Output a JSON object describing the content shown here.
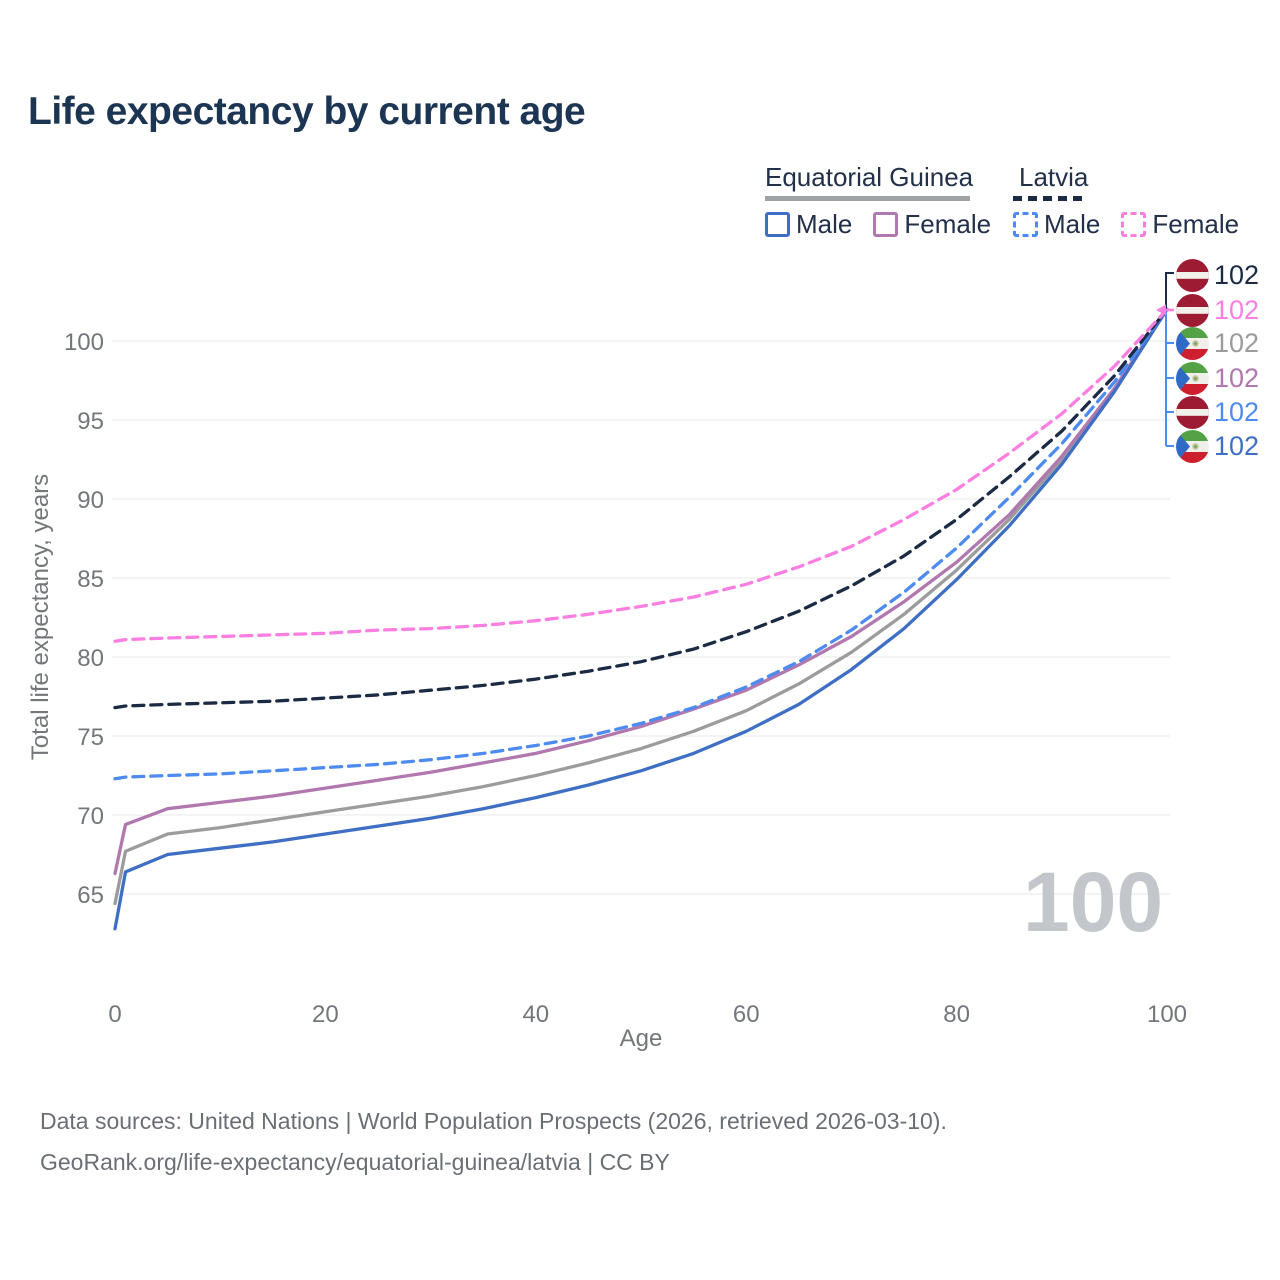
{
  "title": "Life expectancy by current age",
  "watermark": "100",
  "footer": {
    "line1": "Data sources: United Nations | World Population Prospects (2026, retrieved 2026-03-10).",
    "line2": "GeoRank.org/life-expectancy/equatorial-guinea/latvia | CC BY"
  },
  "legend": {
    "groups": [
      {
        "country": "Equatorial Guinea",
        "line_style": "solid",
        "underline_color": "#9FA3A7",
        "items": [
          {
            "label": "Male",
            "color": "#3F6FC4",
            "style": "solid"
          },
          {
            "label": "Female",
            "color": "#B078AE",
            "style": "solid"
          }
        ]
      },
      {
        "country": "Latvia",
        "line_style": "dashed",
        "underline_color": "#1B2B44",
        "items": [
          {
            "label": "Male",
            "color": "#4E8BF0",
            "style": "dashed"
          },
          {
            "label": "Female",
            "color": "#FB7EE1",
            "style": "dashed"
          }
        ]
      }
    ]
  },
  "end_labels": [
    {
      "value": "102",
      "flag": "latvia",
      "color": "#1B2B44",
      "series": "latvia_combined"
    },
    {
      "value": "102",
      "flag": "latvia",
      "color": "#FB7EE1",
      "series": "latvia_female"
    },
    {
      "value": "102",
      "flag": "equatorial_guinea",
      "color": "#9C9C9C",
      "series": "equatorial_guinea_combined"
    },
    {
      "value": "102",
      "flag": "equatorial_guinea",
      "color": "#B078AE",
      "series": "equatorial_guinea_female"
    },
    {
      "value": "102",
      "flag": "latvia",
      "color": "#4E8BF0",
      "series": "latvia_male"
    },
    {
      "value": "102",
      "flag": "equatorial_guinea",
      "color": "#3F6FC4",
      "series": "equatorial_guinea_male"
    }
  ],
  "flag_colors": {
    "latvia": {
      "red": "#9E1B34",
      "white": "#F2F0EA"
    },
    "equatorial_guinea": {
      "green": "#53A346",
      "white": "#F0EFEA",
      "red": "#CE1F2E",
      "blue": "#2F6BC6",
      "emblem": "#BCC49C",
      "emblem_dot": "#6F9C49"
    }
  },
  "chart_data": {
    "type": "line",
    "title": "Life expectancy by current age",
    "xlabel": "Age",
    "ylabel": "Total life expectancy, years",
    "x_ticks": [
      0,
      20,
      40,
      60,
      80,
      100
    ],
    "y_ticks": [
      65,
      70,
      75,
      80,
      85,
      90,
      95,
      100
    ],
    "xlim": [
      0,
      100
    ],
    "ylim": [
      62,
      103
    ],
    "grid": true,
    "legend_position": "top-right",
    "x": [
      0,
      1,
      5,
      10,
      15,
      20,
      25,
      30,
      35,
      40,
      45,
      50,
      55,
      60,
      65,
      70,
      75,
      80,
      85,
      90,
      95,
      100
    ],
    "series": [
      {
        "key": "equatorial_guinea_combined",
        "name": "Equatorial Guinea (combined)",
        "country": "Equatorial Guinea",
        "sex": "combined",
        "style": "solid",
        "color": "#9C9C9C",
        "end_value": 102,
        "values": [
          64.4,
          67.7,
          68.8,
          69.2,
          69.7,
          70.2,
          70.7,
          71.2,
          71.8,
          72.5,
          73.3,
          74.2,
          75.3,
          76.6,
          78.3,
          80.3,
          82.7,
          85.5,
          88.7,
          92.5,
          96.9,
          102
        ]
      },
      {
        "key": "equatorial_guinea_female",
        "name": "Equatorial Guinea Female",
        "country": "Equatorial Guinea",
        "sex": "female",
        "style": "solid",
        "color": "#B078AE",
        "end_value": 102,
        "values": [
          66.3,
          69.4,
          70.4,
          70.8,
          71.2,
          71.7,
          72.2,
          72.7,
          73.3,
          73.9,
          74.7,
          75.6,
          76.7,
          77.9,
          79.5,
          81.3,
          83.5,
          86.0,
          89.0,
          92.7,
          97.0,
          102
        ]
      },
      {
        "key": "equatorial_guinea_male",
        "name": "Equatorial Guinea Male",
        "country": "Equatorial Guinea",
        "sex": "male",
        "style": "solid",
        "color": "#3F6FC4",
        "end_value": 102,
        "values": [
          62.8,
          66.4,
          67.5,
          67.9,
          68.3,
          68.8,
          69.3,
          69.8,
          70.4,
          71.1,
          71.9,
          72.8,
          73.9,
          75.3,
          77.0,
          79.2,
          81.8,
          84.9,
          88.3,
          92.2,
          96.8,
          102
        ]
      },
      {
        "key": "latvia_male",
        "name": "Latvia Male",
        "country": "Latvia",
        "sex": "male",
        "style": "dashed",
        "color": "#4E8BF0",
        "end_value": 102,
        "values": [
          72.3,
          72.4,
          72.5,
          72.6,
          72.8,
          73.0,
          73.2,
          73.5,
          73.9,
          74.4,
          75.0,
          75.8,
          76.8,
          78.1,
          79.7,
          81.7,
          84.1,
          86.9,
          90.1,
          93.5,
          97.4,
          102
        ]
      },
      {
        "key": "latvia_combined",
        "name": "Latvia (combined)",
        "country": "Latvia",
        "sex": "combined",
        "style": "dashed",
        "color": "#1B2B44",
        "end_value": 102,
        "values": [
          76.8,
          76.9,
          77.0,
          77.1,
          77.2,
          77.4,
          77.6,
          77.9,
          78.2,
          78.6,
          79.1,
          79.7,
          80.5,
          81.6,
          82.9,
          84.5,
          86.4,
          88.7,
          91.4,
          94.3,
          97.8,
          102
        ]
      },
      {
        "key": "latvia_female",
        "name": "Latvia Female",
        "country": "Latvia",
        "sex": "female",
        "style": "dashed",
        "color": "#FB7EE1",
        "end_value": 102,
        "values": [
          81.0,
          81.1,
          81.2,
          81.3,
          81.4,
          81.5,
          81.7,
          81.8,
          82.0,
          82.3,
          82.7,
          83.2,
          83.8,
          84.6,
          85.7,
          87.0,
          88.7,
          90.6,
          92.9,
          95.4,
          98.4,
          102
        ]
      }
    ]
  }
}
